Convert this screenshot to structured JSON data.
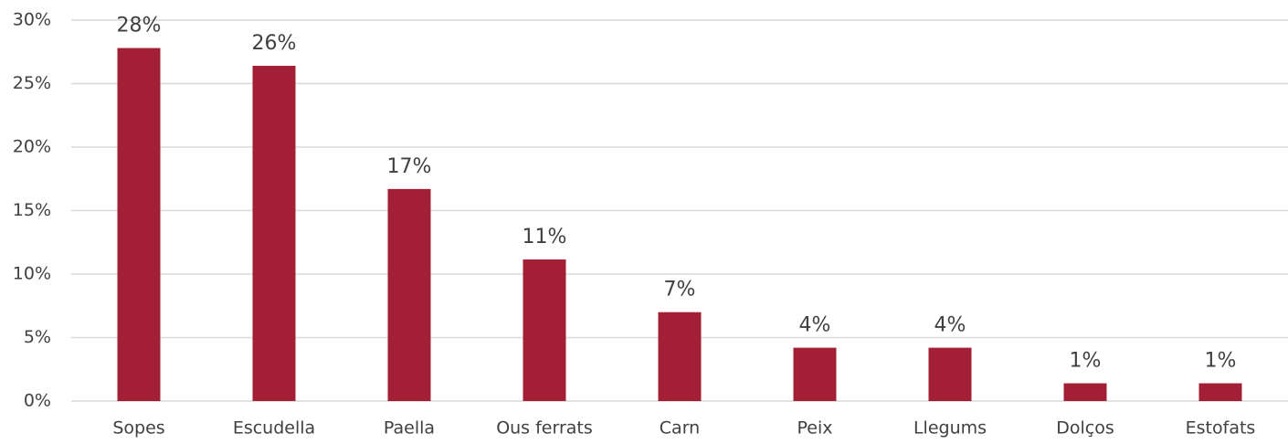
{
  "chart_data": {
    "type": "bar",
    "categories": [
      "Sopes",
      "Escudella",
      "Paella",
      "Ous ferrats",
      "Carn",
      "Peix",
      "Llegums",
      "Dolços",
      "Estofats"
    ],
    "values": [
      27.8,
      26.4,
      16.7,
      11.15,
      7.0,
      4.2,
      4.2,
      1.4,
      1.4
    ],
    "value_labels": [
      "28%",
      "26%",
      "17%",
      "11%",
      "7%",
      "4%",
      "4%",
      "1%",
      "1%"
    ],
    "color": "#a31f36",
    "ylim": [
      0,
      30
    ],
    "yticks": [
      {
        "value": 0,
        "label": "0%"
      },
      {
        "value": 5,
        "label": "5%"
      },
      {
        "value": 10,
        "label": "10%"
      },
      {
        "value": 15,
        "label": "15%"
      },
      {
        "value": 20,
        "label": "20%"
      },
      {
        "value": 25,
        "label": "25%"
      },
      {
        "value": 30,
        "label": "30%"
      }
    ],
    "grid": true
  }
}
